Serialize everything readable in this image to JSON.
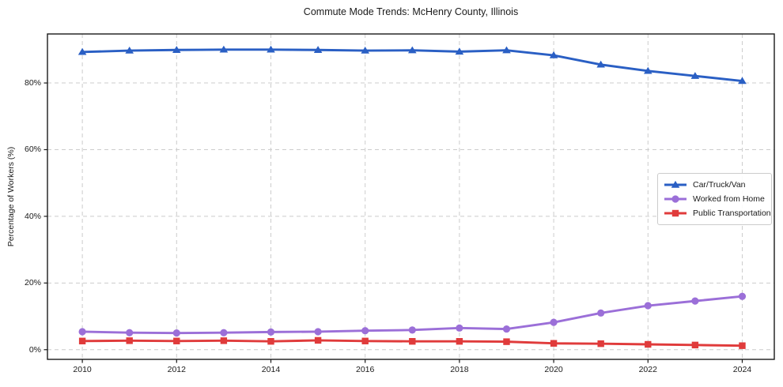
{
  "chart_data": {
    "type": "line",
    "title": "Commute Mode Trends: McHenry County, Illinois",
    "xlabel": "",
    "ylabel": "Percentage of Workers (%)",
    "x": [
      2010,
      2011,
      2012,
      2013,
      2014,
      2015,
      2016,
      2017,
      2018,
      2019,
      2020,
      2021,
      2022,
      2023,
      2024
    ],
    "series": [
      {
        "name": "Car/Truck/Van",
        "color": "#2a5fc4",
        "marker": "triangle",
        "values": [
          89.3,
          89.7,
          89.9,
          90.0,
          90.0,
          89.9,
          89.7,
          89.8,
          89.4,
          89.8,
          88.3,
          85.5,
          83.6,
          82.1,
          80.6
        ]
      },
      {
        "name": "Worked from Home",
        "color": "#9b6fd8",
        "marker": "circle",
        "values": [
          5.4,
          5.1,
          5.0,
          5.1,
          5.3,
          5.4,
          5.7,
          5.9,
          6.5,
          6.2,
          8.2,
          11.0,
          13.2,
          14.6,
          16.0
        ]
      },
      {
        "name": "Public Transportation",
        "color": "#e03b3b",
        "marker": "square",
        "values": [
          2.6,
          2.7,
          2.6,
          2.7,
          2.5,
          2.8,
          2.6,
          2.5,
          2.5,
          2.4,
          1.9,
          1.8,
          1.6,
          1.4,
          1.2
        ]
      }
    ],
    "x_ticks": [
      {
        "value": 2010,
        "label": "2010"
      },
      {
        "value": 2012,
        "label": "2012"
      },
      {
        "value": 2014,
        "label": "2014"
      },
      {
        "value": 2016,
        "label": "2016"
      },
      {
        "value": 2018,
        "label": "2018"
      },
      {
        "value": 2020,
        "label": "2020"
      },
      {
        "value": 2022,
        "label": "2022"
      },
      {
        "value": 2024,
        "label": "2024"
      }
    ],
    "y_ticks": [
      {
        "value": 0,
        "label": "0%"
      },
      {
        "value": 20,
        "label": "20%"
      },
      {
        "value": 40,
        "label": "40%"
      },
      {
        "value": 60,
        "label": "60%"
      },
      {
        "value": 80,
        "label": "80%"
      }
    ],
    "xlim": [
      2009.26,
      2024.68
    ],
    "ylim": [
      -2.9,
      94.7
    ],
    "grid": true,
    "legend_position": "center-right",
    "colors": {
      "grid": "#cccccc",
      "axis": "#1a1a1a",
      "background": "#ffffff"
    }
  }
}
